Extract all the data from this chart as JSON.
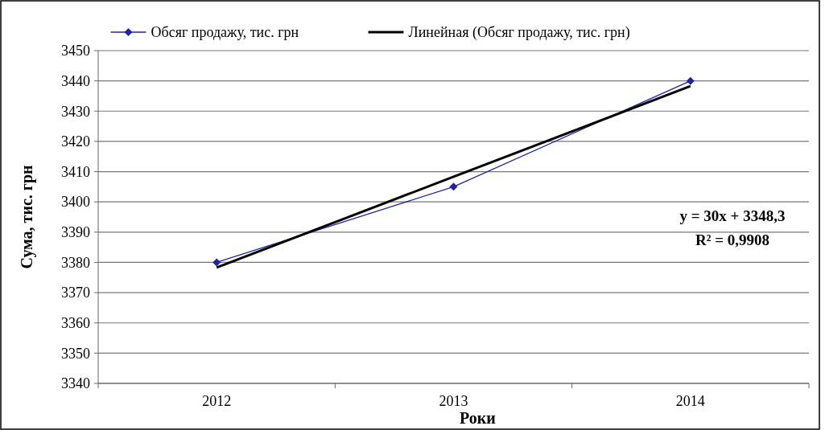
{
  "chart_data": {
    "type": "line",
    "categories": [
      "2012",
      "2013",
      "2014"
    ],
    "series": [
      {
        "name": "Обсяг продажу, тис. грн",
        "color": "#2323a0",
        "values": [
          3380,
          3405,
          3440
        ]
      },
      {
        "name": "Линейная (Обсяг продажу, тис. грн)",
        "color": "#000000",
        "values": [
          3378.3,
          3408.3,
          3438.3
        ],
        "marker": "none"
      }
    ],
    "ylim": [
      3340,
      3450
    ],
    "yticks": [
      3340,
      3350,
      3360,
      3370,
      3380,
      3390,
      3400,
      3410,
      3420,
      3430,
      3440,
      3450
    ],
    "xlabel": "Роки",
    "ylabel": "Сума, тис. грн",
    "grid": "y",
    "legend": "top",
    "marker": "diamond",
    "annotations": [
      "y = 30x + 3348,3",
      "R² = 0,9908"
    ]
  }
}
